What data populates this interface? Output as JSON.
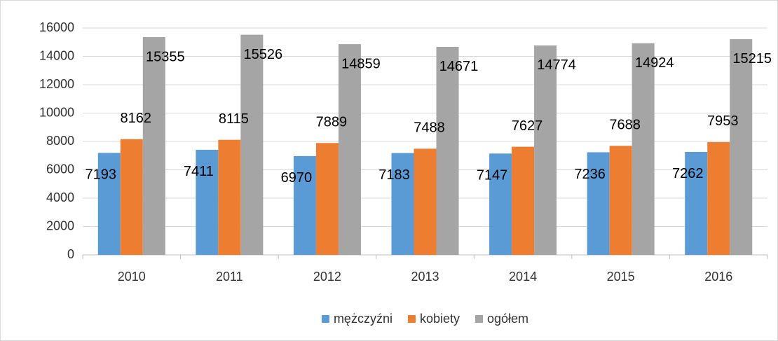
{
  "chart_data": {
    "type": "bar",
    "categories": [
      "2010",
      "2011",
      "2012",
      "2013",
      "2014",
      "2015",
      "2016"
    ],
    "series": [
      {
        "name": "mężczyźni",
        "color": "#5b9bd5",
        "values": [
          7193,
          7411,
          6970,
          7183,
          7147,
          7236,
          7262
        ]
      },
      {
        "name": "kobiety",
        "color": "#ed7d31",
        "values": [
          8162,
          8115,
          7889,
          7488,
          7627,
          7688,
          7953
        ]
      },
      {
        "name": "ogółem",
        "color": "#a5a5a5",
        "values": [
          15355,
          15526,
          14859,
          14671,
          14774,
          14924,
          15215
        ]
      }
    ],
    "ylim": [
      0,
      16000
    ],
    "yticks": [
      0,
      2000,
      4000,
      6000,
      8000,
      10000,
      12000,
      14000,
      16000
    ],
    "grid": true,
    "legend": "bottom"
  }
}
